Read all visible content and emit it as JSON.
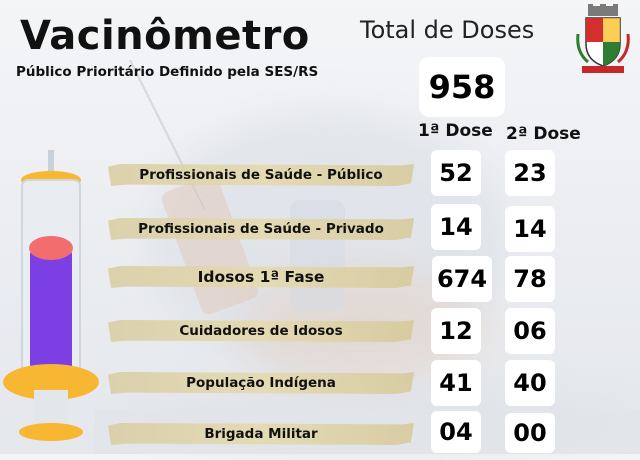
{
  "header": {
    "title": "Vacinômetro",
    "subtitle": "Público Prioritário Definido pela SES/RS"
  },
  "total": {
    "label": "Total de Doses",
    "value": "958"
  },
  "columns": {
    "dose1": "1ª Dose",
    "dose2": "2ª Dose"
  },
  "rows": [
    {
      "label": "Profissionais de Saúde - Público",
      "dose1": "52",
      "dose2": "23"
    },
    {
      "label": "Profissionais de Saúde - Privado",
      "dose1": "14",
      "dose2": "14"
    },
    {
      "label": "Idosos   1ª Fase",
      "dose1": "674",
      "dose2": "78"
    },
    {
      "label": "Cuidadores de Idosos",
      "dose1": "12",
      "dose2": "06"
    },
    {
      "label": "População Indígena",
      "dose1": "41",
      "dose2": "40"
    },
    {
      "label": "Brigada Militar",
      "dose1": "04",
      "dose2": "00"
    }
  ],
  "icons": {
    "syringe": "syringe-illustration",
    "crest": "municipal-coat-of-arms"
  },
  "colors": {
    "liquid": "#7b3fe4",
    "plunger_cap": "#f26d6d",
    "syringe_base": "#f7b733",
    "band": "#ddd0a6"
  }
}
